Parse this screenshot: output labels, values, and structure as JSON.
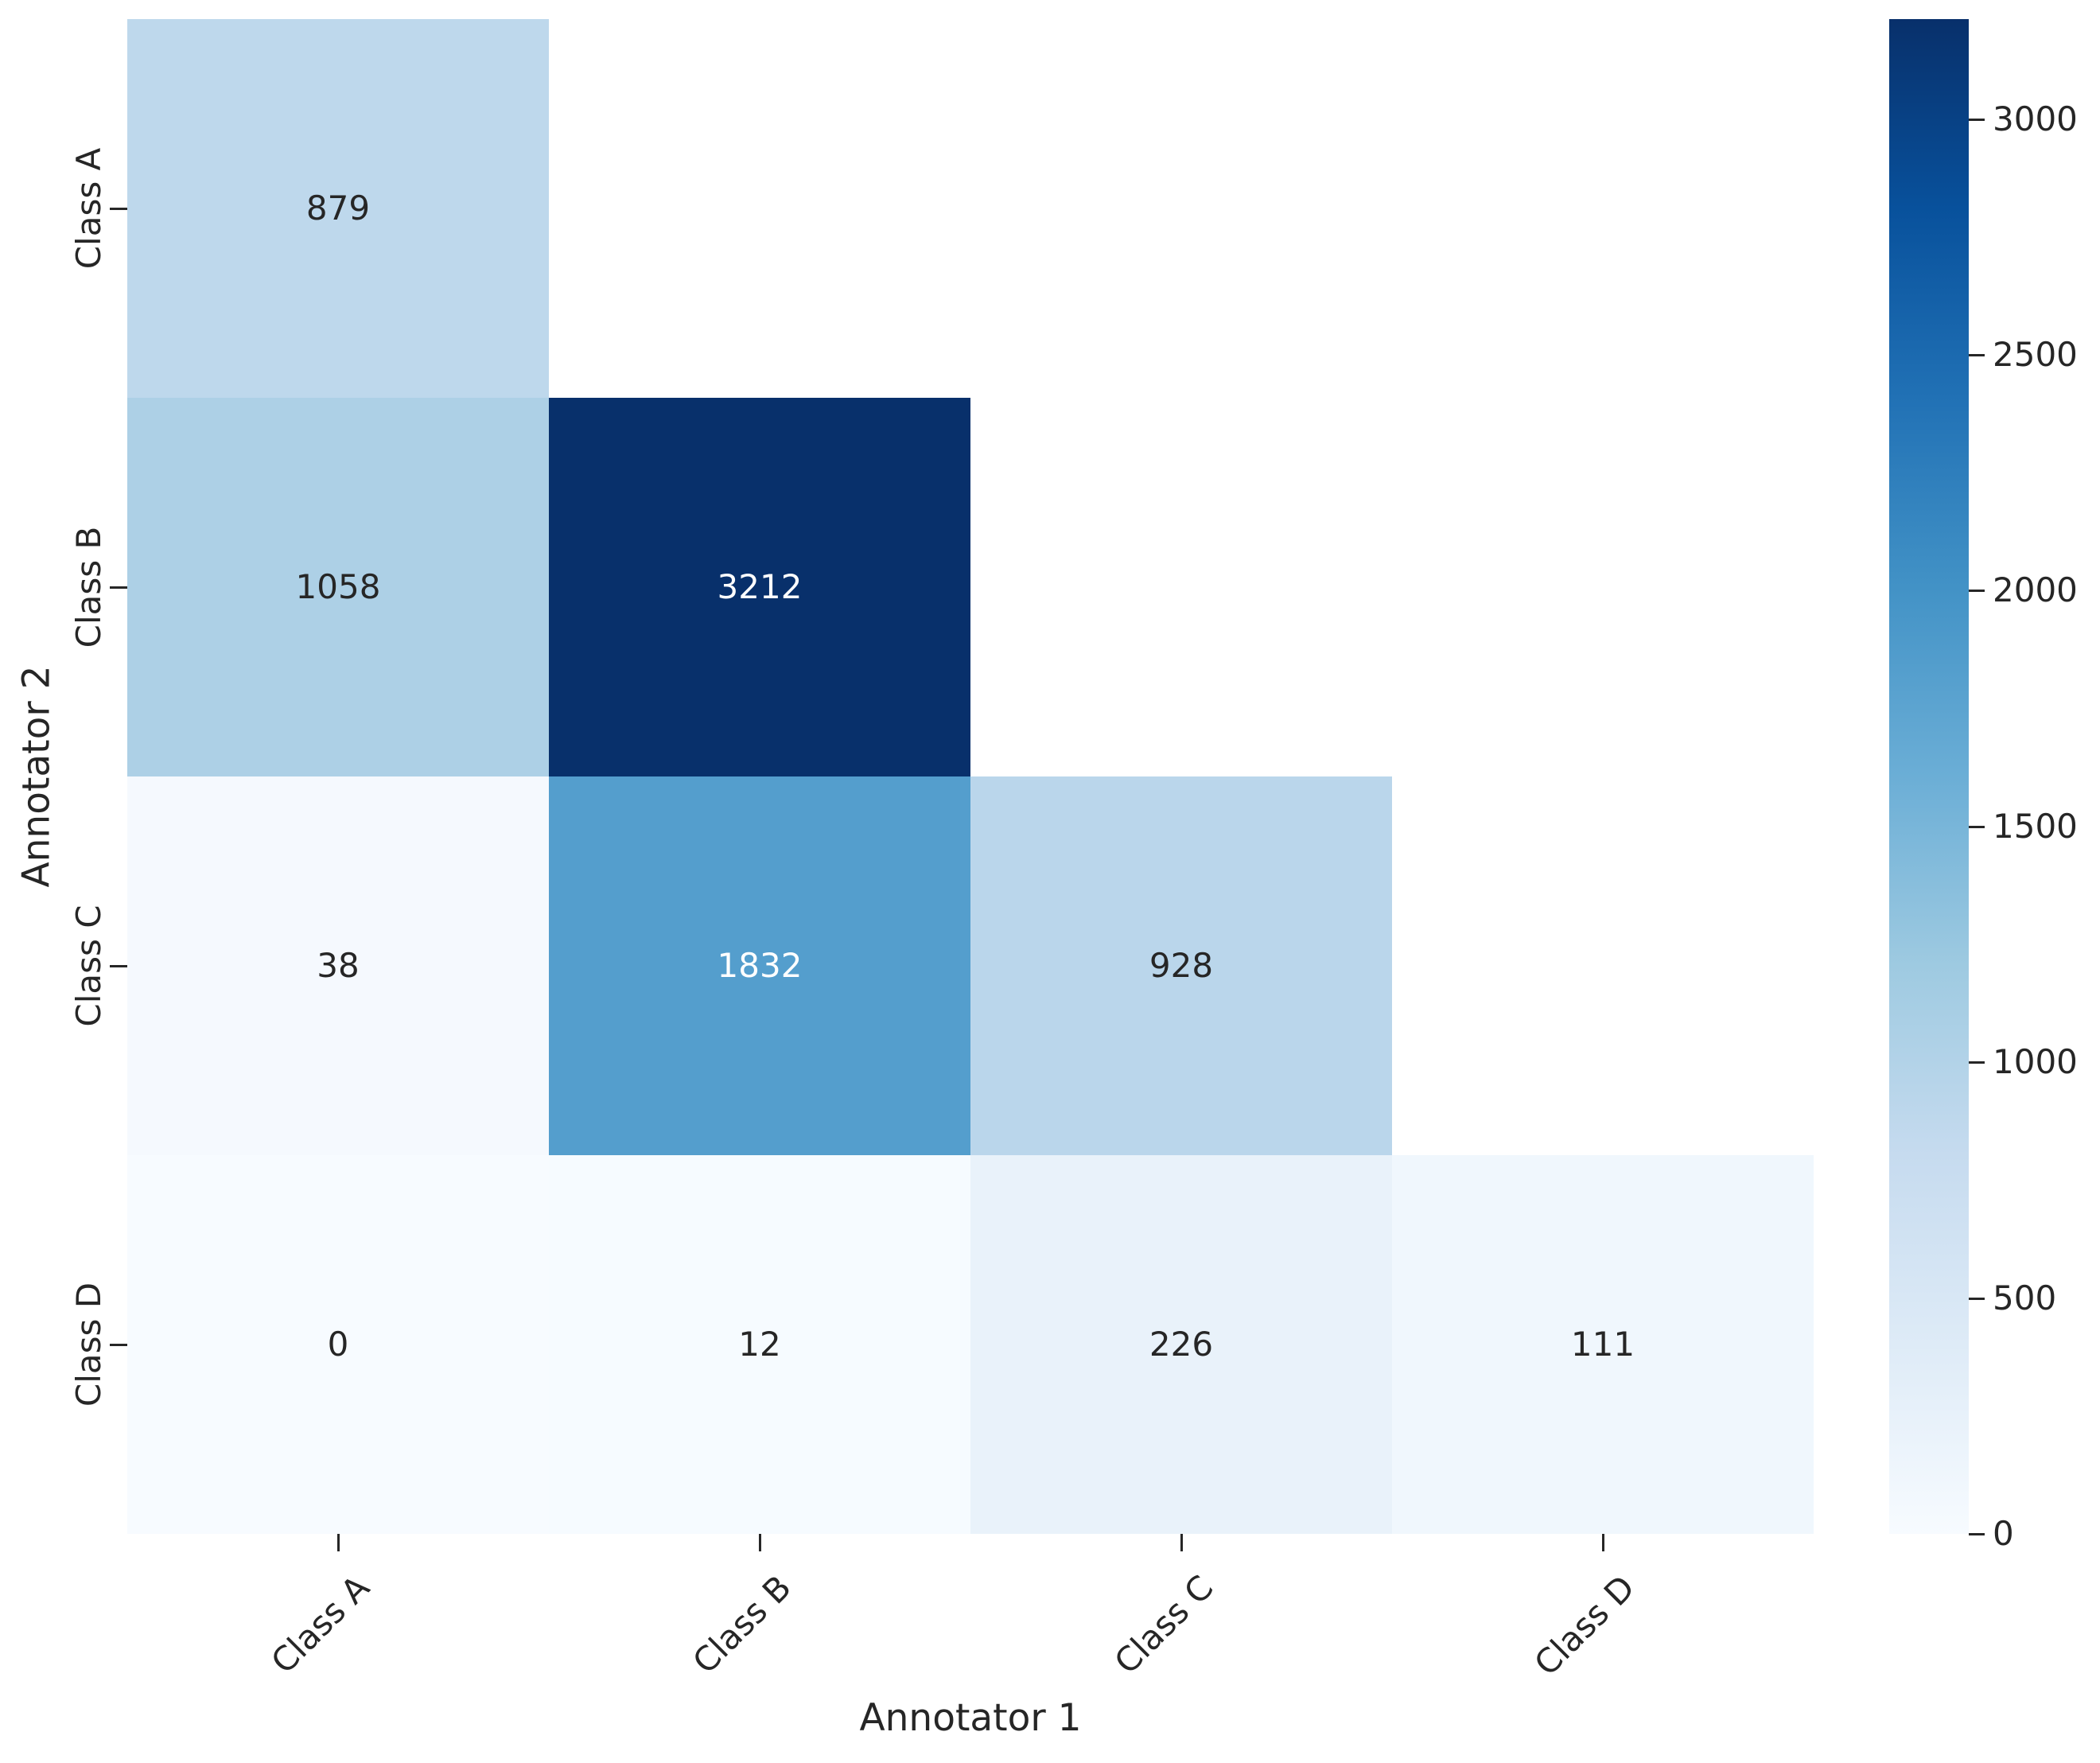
{
  "chart_data": {
    "type": "heatmap",
    "title": "",
    "xlabel": "Annotator 1",
    "ylabel": "Annotator 2",
    "x_categories": [
      "Class A",
      "Class B",
      "Class C",
      "Class D"
    ],
    "y_categories": [
      "Class A",
      "Class B",
      "Class C",
      "Class D"
    ],
    "matrix": [
      [
        879,
        null,
        null,
        null
      ],
      [
        1058,
        3212,
        null,
        null
      ],
      [
        38,
        1832,
        928,
        null
      ],
      [
        0,
        12,
        226,
        111
      ]
    ],
    "mask": "upper-triangle-hidden",
    "vmin": 0,
    "vmax": 3212,
    "colormap": "Blues",
    "colorbar_ticks": [
      0,
      500,
      1000,
      1500,
      2000,
      2500,
      3000
    ],
    "legend_position": "right-colorbar",
    "grid": false,
    "annotations_shown": true
  },
  "colors": {
    "background": "#ffffff",
    "annotation_dark": "#262626",
    "annotation_light": "#ffffff",
    "tick_color": "#262626",
    "cmap_anchors": [
      "#f7fbff",
      "#deebf7",
      "#c6dbef",
      "#9ecae1",
      "#6baed6",
      "#4292c6",
      "#2171b5",
      "#08519c",
      "#08306b"
    ]
  }
}
